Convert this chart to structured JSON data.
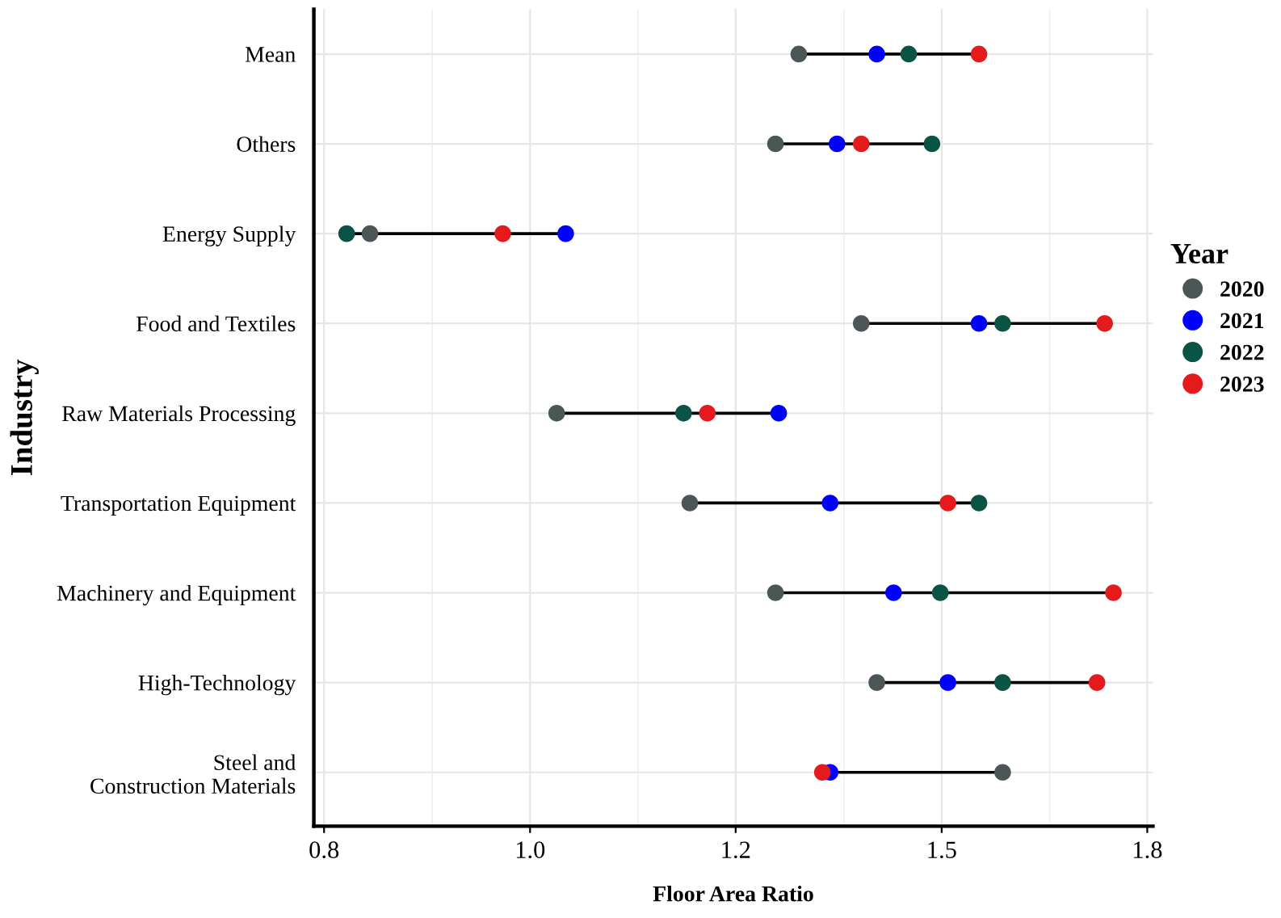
{
  "chart_data": {
    "type": "scatter",
    "orientation": "horizontal",
    "xlabel": "Floor Area Ratio",
    "ylabel": "Industry",
    "legend_title": "Year",
    "legend": "right",
    "grid": true,
    "marker": "circle",
    "log": "x",
    "categories": [
      "Mean",
      "Others",
      "Energy Supply",
      "Food and Textiles",
      "Raw Materials Processing",
      "Transportation Equipment",
      "Machinery and Equipment",
      "High-Technology",
      "Steel and\nConstruction Materials"
    ],
    "xlim": [
      0.792,
      1.81
    ],
    "xticks": [
      {
        "value": 0.8,
        "label": "0.8"
      },
      {
        "value": 0.98,
        "label": "1.0"
      },
      {
        "value": 1.2,
        "label": "1.2"
      },
      {
        "value": 1.47,
        "label": "1.5"
      },
      {
        "value": 1.8,
        "label": "1.8"
      }
    ],
    "series": [
      {
        "name": "2020",
        "color": "#4d5656",
        "values": [
          1.277,
          1.248,
          0.837,
          1.358,
          1.006,
          1.147,
          1.248,
          1.379,
          1.561
        ]
      },
      {
        "name": "2021",
        "color": "#0000ff",
        "values": [
          1.379,
          1.326,
          1.015,
          1.525,
          1.252,
          1.317,
          1.402,
          1.479,
          1.317
        ]
      },
      {
        "name": "2022",
        "color": "#0b5345",
        "values": [
          1.423,
          1.456,
          0.818,
          1.561,
          1.14,
          1.525,
          1.468,
          1.561,
          null
        ]
      },
      {
        "name": "2023",
        "color": "#e41a1c",
        "values": [
          1.525,
          1.358,
          0.954,
          1.726,
          1.167,
          1.479,
          1.741,
          1.713,
          1.307
        ]
      }
    ]
  }
}
